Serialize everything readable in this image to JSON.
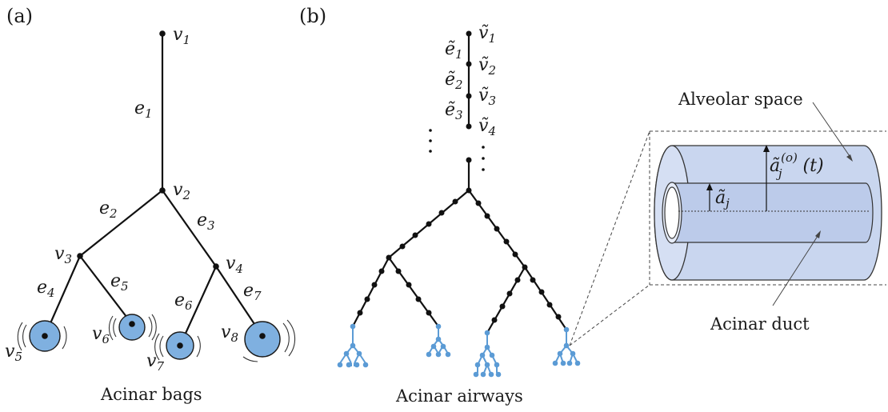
{
  "panel_a": {
    "tag": "(a)",
    "caption": "Acinar bags",
    "vertices": [
      "v1",
      "v2",
      "v3",
      "v4",
      "v5",
      "v6",
      "v7",
      "v8"
    ],
    "edges": [
      "e1",
      "e2",
      "e3",
      "e4",
      "e5",
      "e6",
      "e7"
    ]
  },
  "panel_b": {
    "tag": "(b)",
    "caption": "Acinar airways",
    "vertices": [
      "ṽ1",
      "ṽ2",
      "ṽ3",
      "ṽ4"
    ],
    "edges": [
      "ẽ1",
      "ẽ2",
      "ẽ3"
    ]
  },
  "inset": {
    "outer_label": "Alveolar space",
    "inner_label": "Acinar duct",
    "outer_radius_label": "ã",
    "outer_radius_sup": "(o)",
    "outer_radius_sub": "j",
    "outer_radius_arg": "(t)",
    "inner_radius_label": "ã",
    "inner_radius_sub": "j"
  },
  "colors": {
    "acinar": "#5b9bd5",
    "bag": "#7fb0e0",
    "cylinder": "#c5d3ee"
  }
}
